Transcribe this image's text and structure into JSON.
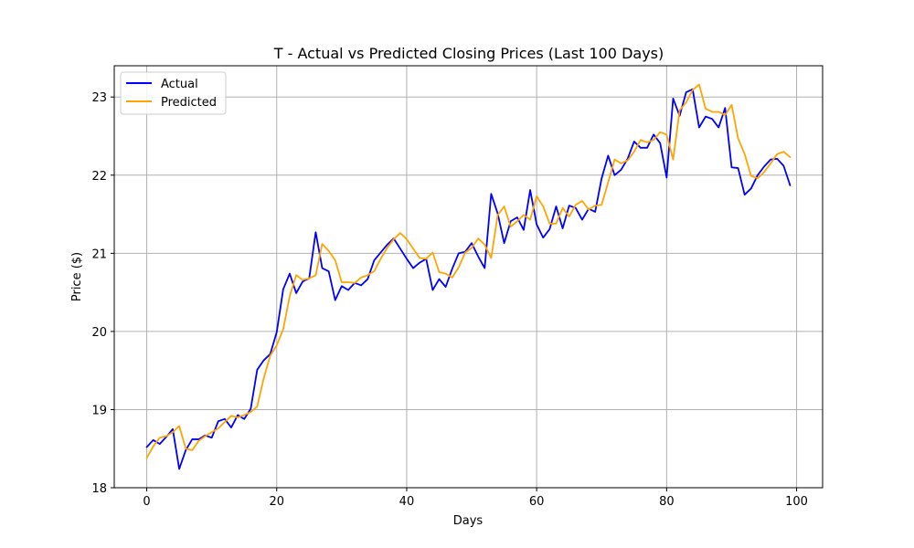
{
  "chart_data": {
    "type": "line",
    "title": "T - Actual vs Predicted Closing Prices (Last 100 Days)",
    "xlabel": "Days",
    "ylabel": "Price ($)",
    "xlim": [
      -5,
      104
    ],
    "ylim": [
      18.0,
      23.4
    ],
    "xticks": [
      0,
      20,
      40,
      60,
      80,
      100
    ],
    "yticks": [
      18,
      19,
      20,
      21,
      22,
      23
    ],
    "grid": true,
    "legend_position": "top-left",
    "series": [
      {
        "name": "Actual",
        "color": "#0000ff",
        "values": [
          18.52,
          18.61,
          18.56,
          18.65,
          18.75,
          18.24,
          18.48,
          18.62,
          18.62,
          18.67,
          18.64,
          18.85,
          18.88,
          18.77,
          18.93,
          18.88,
          19.01,
          19.51,
          19.63,
          19.71,
          19.99,
          20.54,
          20.74,
          20.49,
          20.64,
          20.68,
          21.27,
          20.81,
          20.77,
          20.4,
          20.58,
          20.53,
          20.62,
          20.59,
          20.67,
          20.91,
          21.01,
          21.11,
          21.19,
          21.06,
          20.93,
          20.81,
          20.88,
          20.93,
          20.53,
          20.67,
          20.57,
          20.8,
          21.0,
          21.02,
          21.13,
          20.96,
          20.81,
          21.76,
          21.51,
          21.13,
          21.41,
          21.46,
          21.3,
          21.81,
          21.37,
          21.2,
          21.31,
          21.6,
          21.32,
          21.61,
          21.58,
          21.43,
          21.57,
          21.53,
          21.96,
          22.25,
          22.0,
          22.07,
          22.21,
          22.43,
          22.35,
          22.35,
          22.52,
          22.41,
          21.97,
          22.98,
          22.76,
          23.06,
          23.1,
          22.61,
          22.75,
          22.72,
          22.61,
          22.86,
          22.1,
          22.09,
          21.75,
          21.83,
          22.0,
          22.11,
          22.2,
          22.21,
          22.12,
          21.87
        ]
      },
      {
        "name": "Predicted",
        "color": "#ffa500",
        "values": [
          18.38,
          18.53,
          18.64,
          18.66,
          18.71,
          18.79,
          18.5,
          18.48,
          18.6,
          18.66,
          18.71,
          18.76,
          18.84,
          18.92,
          18.9,
          18.93,
          18.97,
          19.04,
          19.4,
          19.69,
          19.82,
          20.03,
          20.45,
          20.72,
          20.66,
          20.68,
          20.72,
          21.12,
          21.03,
          20.91,
          20.63,
          20.63,
          20.62,
          20.69,
          20.72,
          20.77,
          20.93,
          21.07,
          21.18,
          21.26,
          21.18,
          21.06,
          20.94,
          20.93,
          21.01,
          20.76,
          20.74,
          20.69,
          20.82,
          21.01,
          21.07,
          21.19,
          21.11,
          20.94,
          21.49,
          21.6,
          21.34,
          21.41,
          21.49,
          21.43,
          21.73,
          21.6,
          21.38,
          21.38,
          21.58,
          21.47,
          21.62,
          21.67,
          21.56,
          21.61,
          21.62,
          21.91,
          22.2,
          22.15,
          22.19,
          22.3,
          22.45,
          22.42,
          22.45,
          22.55,
          22.52,
          22.2,
          22.83,
          22.93,
          23.09,
          23.16,
          22.85,
          22.81,
          22.81,
          22.77,
          22.9,
          22.47,
          22.27,
          21.99,
          21.96,
          22.04,
          22.15,
          22.27,
          22.3,
          22.23
        ]
      }
    ]
  }
}
